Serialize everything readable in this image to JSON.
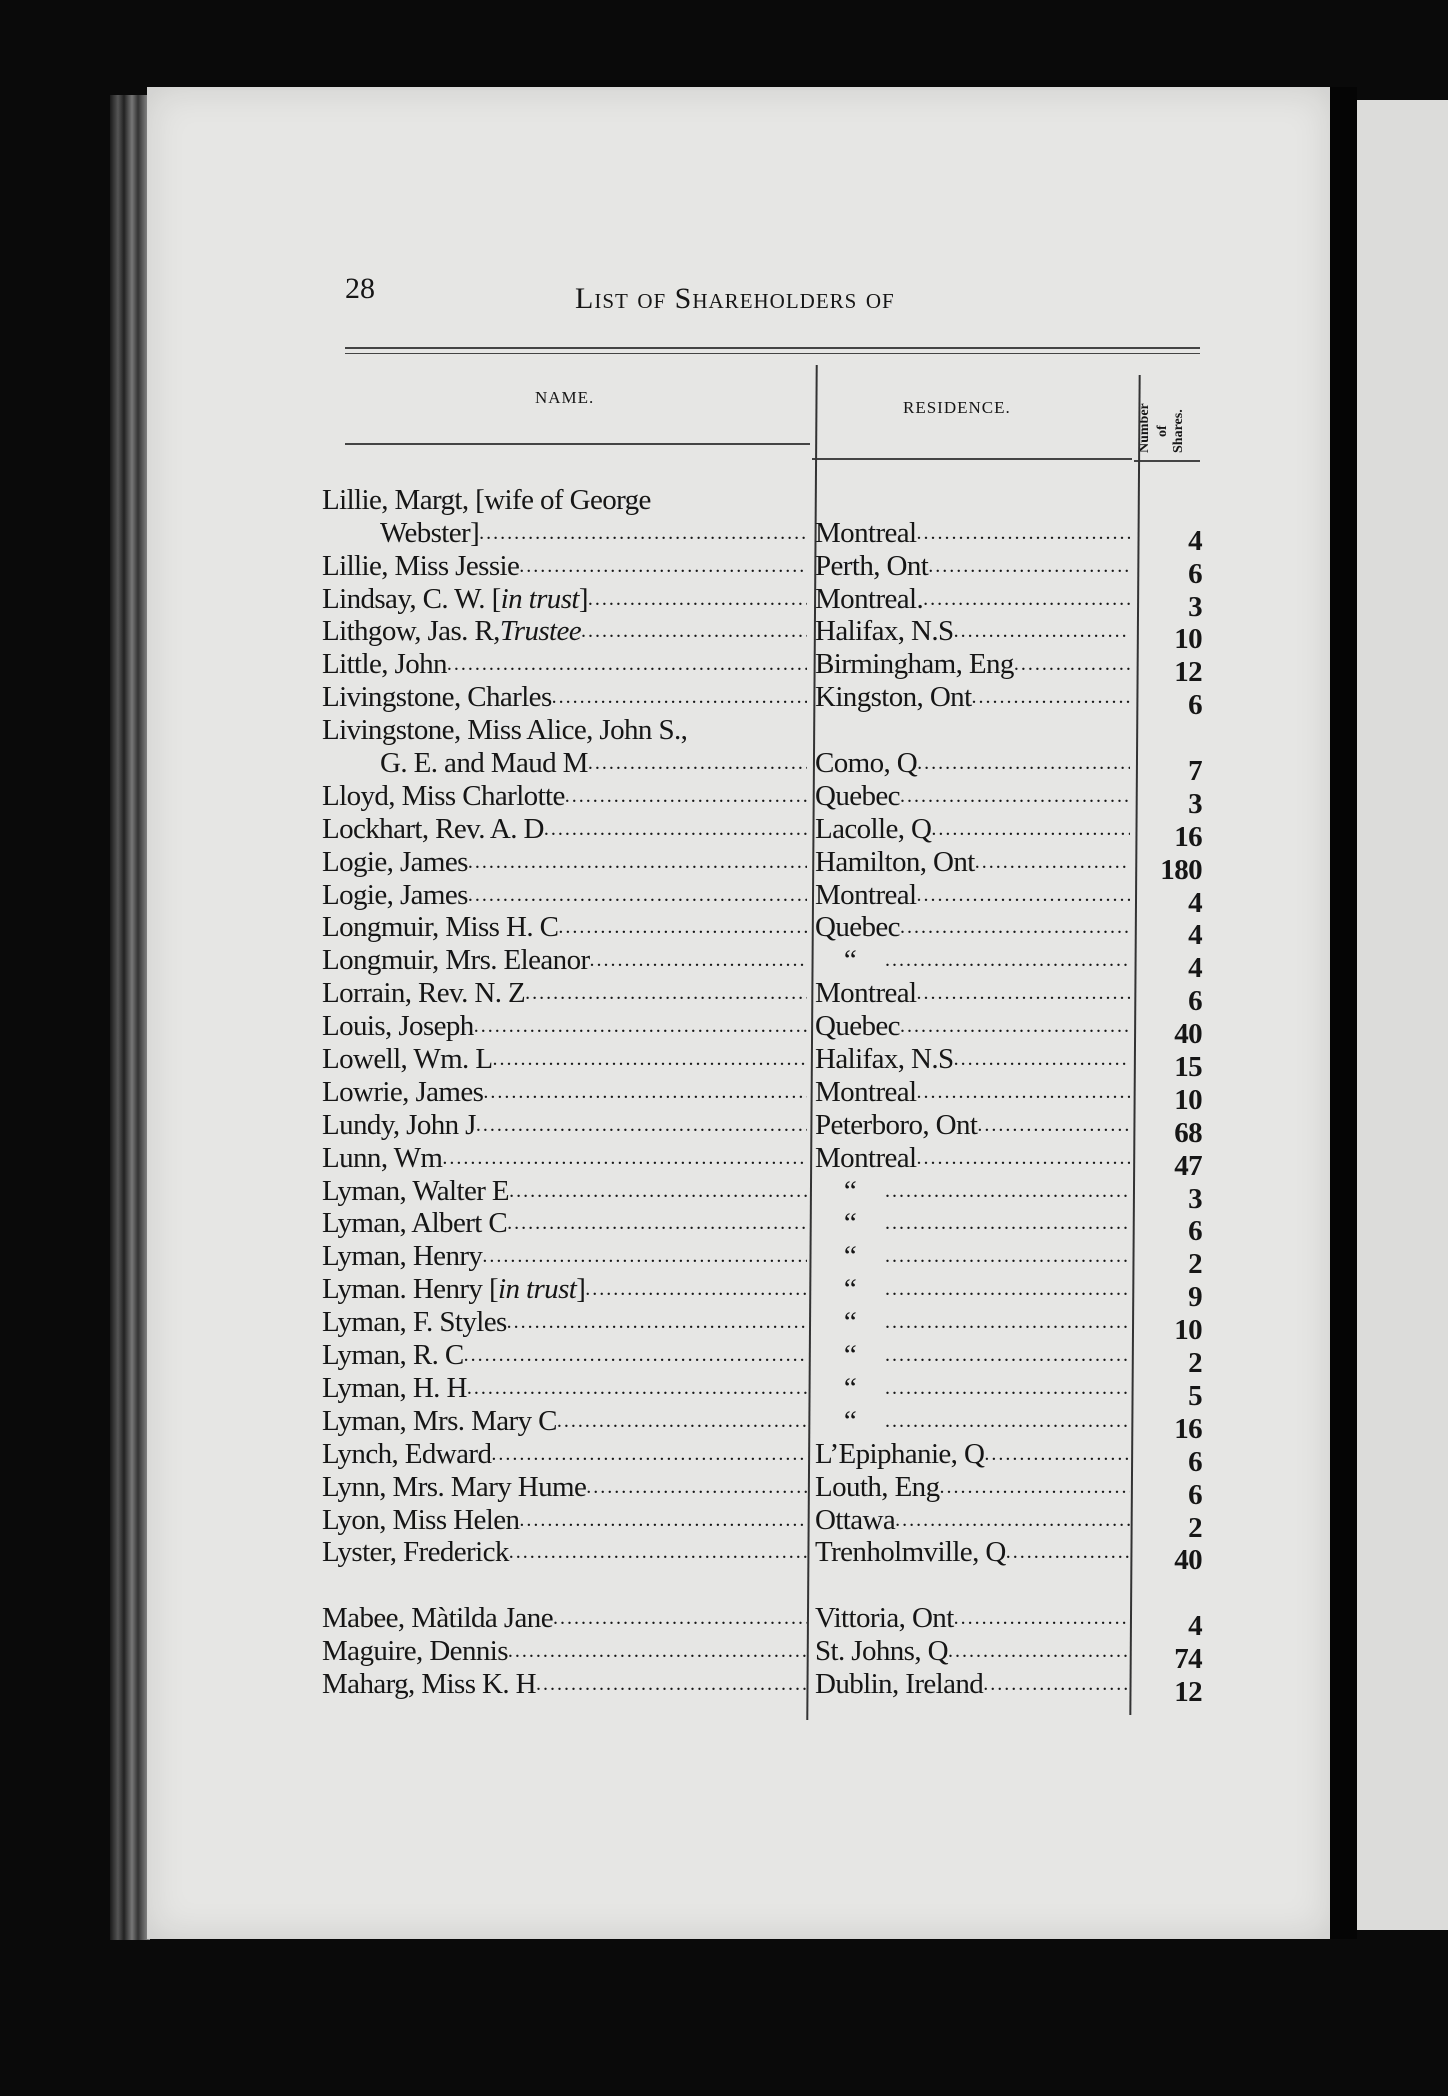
{
  "page_number": "28",
  "running_title": "List of Shareholders of",
  "columns": {
    "name": "NAME.",
    "residence": "RESIDENCE.",
    "shares_line1": "Number",
    "shares_line2": "of",
    "shares_line3": "Shares."
  },
  "ditto": "“",
  "rows": [
    {
      "name": "Lillie,  Margt, [wife of George",
      "residence": "",
      "shares": "",
      "no_leader": true
    },
    {
      "name": "Webster]",
      "continuation": true,
      "residence": "Montreal",
      "shares": "4"
    },
    {
      "name": "Lillie, Miss Jessie",
      "residence": "Perth, Ont",
      "shares": "6"
    },
    {
      "name": "Lindsay, C. W. [",
      "italic": "in trust",
      "after": "]",
      "residence": "Montreal.",
      "shares": "3"
    },
    {
      "name": "Lithgow, Jas. R, ",
      "italic": "Trustee",
      "residence": "Halifax, N.S",
      "shares": "10"
    },
    {
      "name": "Little, John",
      "residence": "Birmingham, Eng",
      "shares": "12"
    },
    {
      "name": "Livingstone, Charles",
      "residence": "Kingston, Ont",
      "shares": "6"
    },
    {
      "name": "Livingstone, Miss Alice, John S.,",
      "residence": "",
      "shares": "",
      "no_leader": true
    },
    {
      "name": "G. E. and Maud M",
      "continuation": true,
      "residence": "Como, Q",
      "shares": "7"
    },
    {
      "name": "Lloyd, Miss Charlotte",
      "residence": "Quebec",
      "shares": "3"
    },
    {
      "name": "Lockhart, Rev. A. D",
      "residence": "Lacolle, Q",
      "shares": "16"
    },
    {
      "name": "Logie, James",
      "residence": "Hamilton, Ont",
      "shares": "180"
    },
    {
      "name": "Logie, James",
      "residence": "Montreal",
      "shares": "4"
    },
    {
      "name": "Longmuir, Miss H. C",
      "residence": "Quebec",
      "shares": "4"
    },
    {
      "name": "Longmuir, Mrs. Eleanor",
      "residence": "“",
      "shares": "4"
    },
    {
      "name": "Lorrain, Rev. N. Z",
      "residence": "Montreal",
      "shares": "6"
    },
    {
      "name": "Louis, Joseph",
      "residence": "Quebec",
      "shares": "40"
    },
    {
      "name": "Lowell, Wm. L",
      "residence": "Halifax, N.S",
      "shares": "15"
    },
    {
      "name": "Lowrie, James",
      "residence": "Montreal",
      "shares": "10"
    },
    {
      "name": "Lundy, John J",
      "residence": "Peterboro, Ont",
      "shares": "68"
    },
    {
      "name": "Lunn, Wm",
      "residence": "Montreal",
      "shares": "47"
    },
    {
      "name": "Lyman, Walter E",
      "residence": "“",
      "shares": "3"
    },
    {
      "name": "Lyman, Albert C",
      "residence": "“",
      "shares": "6"
    },
    {
      "name": "Lyman, Henry",
      "residence": "“",
      "shares": "2"
    },
    {
      "name": "Lyman. Henry [",
      "italic": "in trust",
      "after": "]",
      "residence": "“",
      "shares": "9"
    },
    {
      "name": "Lyman, F. Styles",
      "residence": "“",
      "shares": "10"
    },
    {
      "name": "Lyman, R. C",
      "residence": "“",
      "shares": "2"
    },
    {
      "name": "Lyman, H. H",
      "residence": "“",
      "shares": "5"
    },
    {
      "name": "Lyman, Mrs. Mary C",
      "residence": "“",
      "shares": "16"
    },
    {
      "name": "Lynch, Edward",
      "residence": "L’Epiphanie, Q",
      "shares": "6"
    },
    {
      "name": "Lynn, Mrs. Mary Hume",
      "residence": "Louth, Eng",
      "shares": "6"
    },
    {
      "name": "Lyon, Miss Helen",
      "residence": "Ottawa",
      "shares": "2"
    },
    {
      "name": "Lyster, Frederick",
      "residence": "Trenholmville, Q",
      "shares": "40"
    },
    {
      "gap": true
    },
    {
      "name": "Mabee, Màtilda Jane",
      "residence": "Vittoria, Ont",
      "shares": "4"
    },
    {
      "name": "Maguire, Dennis",
      "residence": "St. Johns, Q",
      "shares": "74"
    },
    {
      "name": "Maharg, Miss K. H",
      "residence": "Dublin, Ireland",
      "shares": "12"
    }
  ]
}
